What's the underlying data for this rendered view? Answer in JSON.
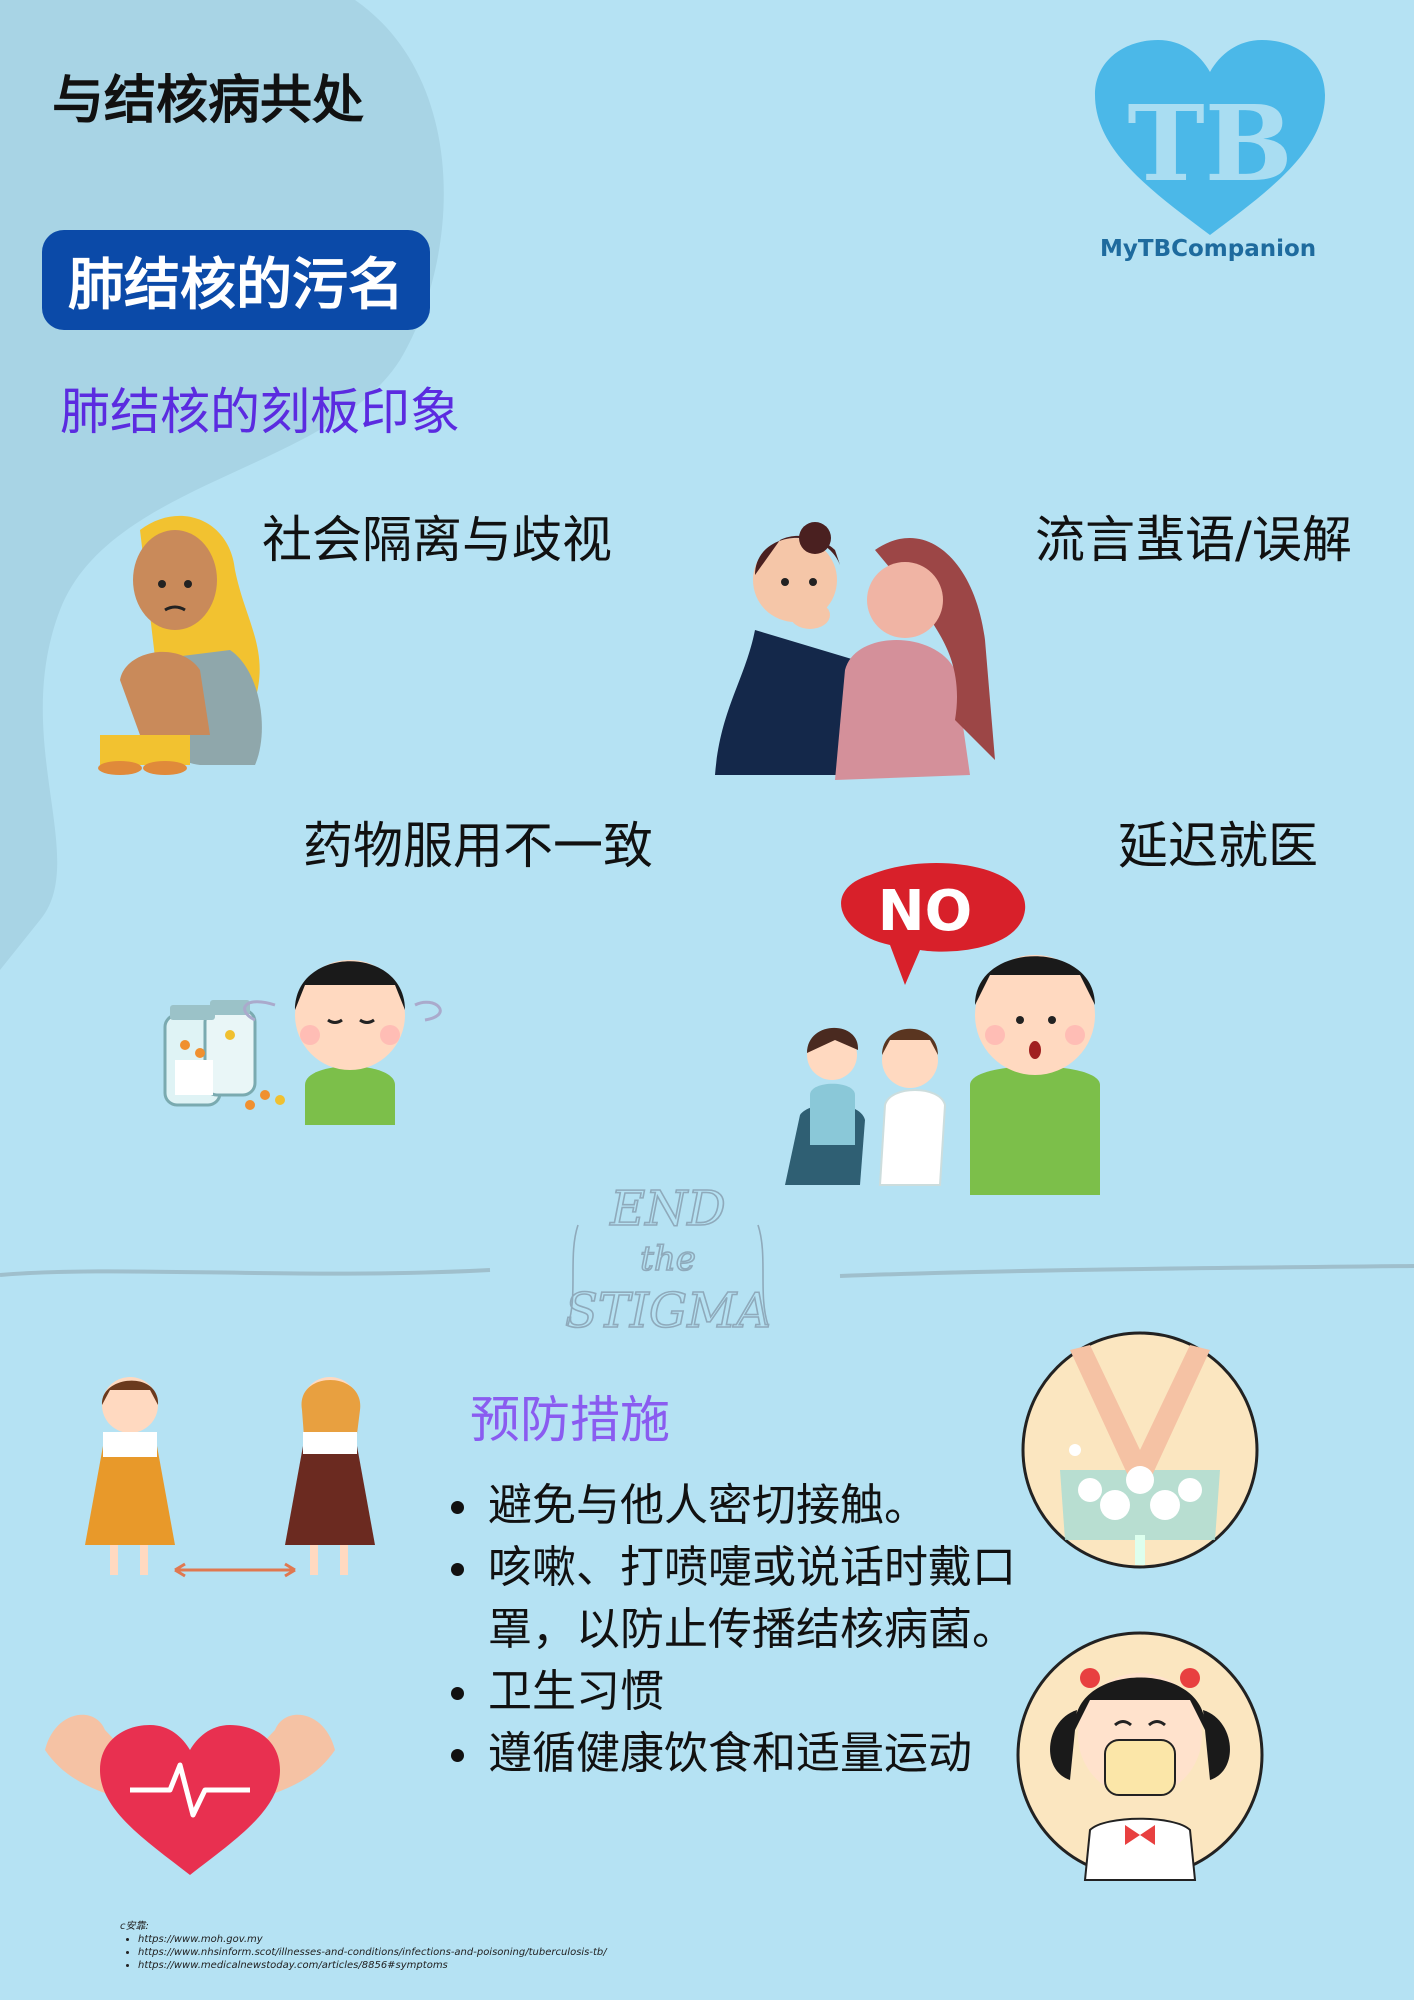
{
  "page": {
    "title": "与结核病共处",
    "badge": "肺结核的污名",
    "logo": {
      "name": "MyTBCompanion",
      "mark_text": "TB"
    }
  },
  "stereotypes": {
    "heading": "肺结核的刻板印象",
    "items": [
      {
        "label": "社会隔离与歧视"
      },
      {
        "label": "流言蜚语/误解"
      },
      {
        "label": "药物服用不一致"
      },
      {
        "label": "延迟就医",
        "bubble_text": "NO"
      }
    ]
  },
  "watermark": {
    "line1": "END",
    "line2": "the",
    "line3": "STIGMA"
  },
  "prevention": {
    "heading": "预防措施",
    "items": [
      "避免与他人密切接触。",
      "咳嗽、打喷嚏或说话时戴口罩，以防止传播结核病菌。",
      "卫生习惯",
      "遵循健康饮食和适量运动"
    ]
  },
  "references": {
    "label": "c安靠:",
    "items": [
      "https://www.moh.gov.my",
      "https://www.nhsinform.scot/illnesses-and-conditions/infections-and-poisoning/tuberculosis-tb/",
      "https://www.medicalnewstoday.com/articles/8856#symptoms"
    ]
  },
  "colors": {
    "background": "#b5e2f3",
    "blob": "#a8d4e5",
    "badge": "#0b4aa8",
    "heading_purple": "#5b2be0",
    "logo_blue": "#4bb8e8"
  }
}
